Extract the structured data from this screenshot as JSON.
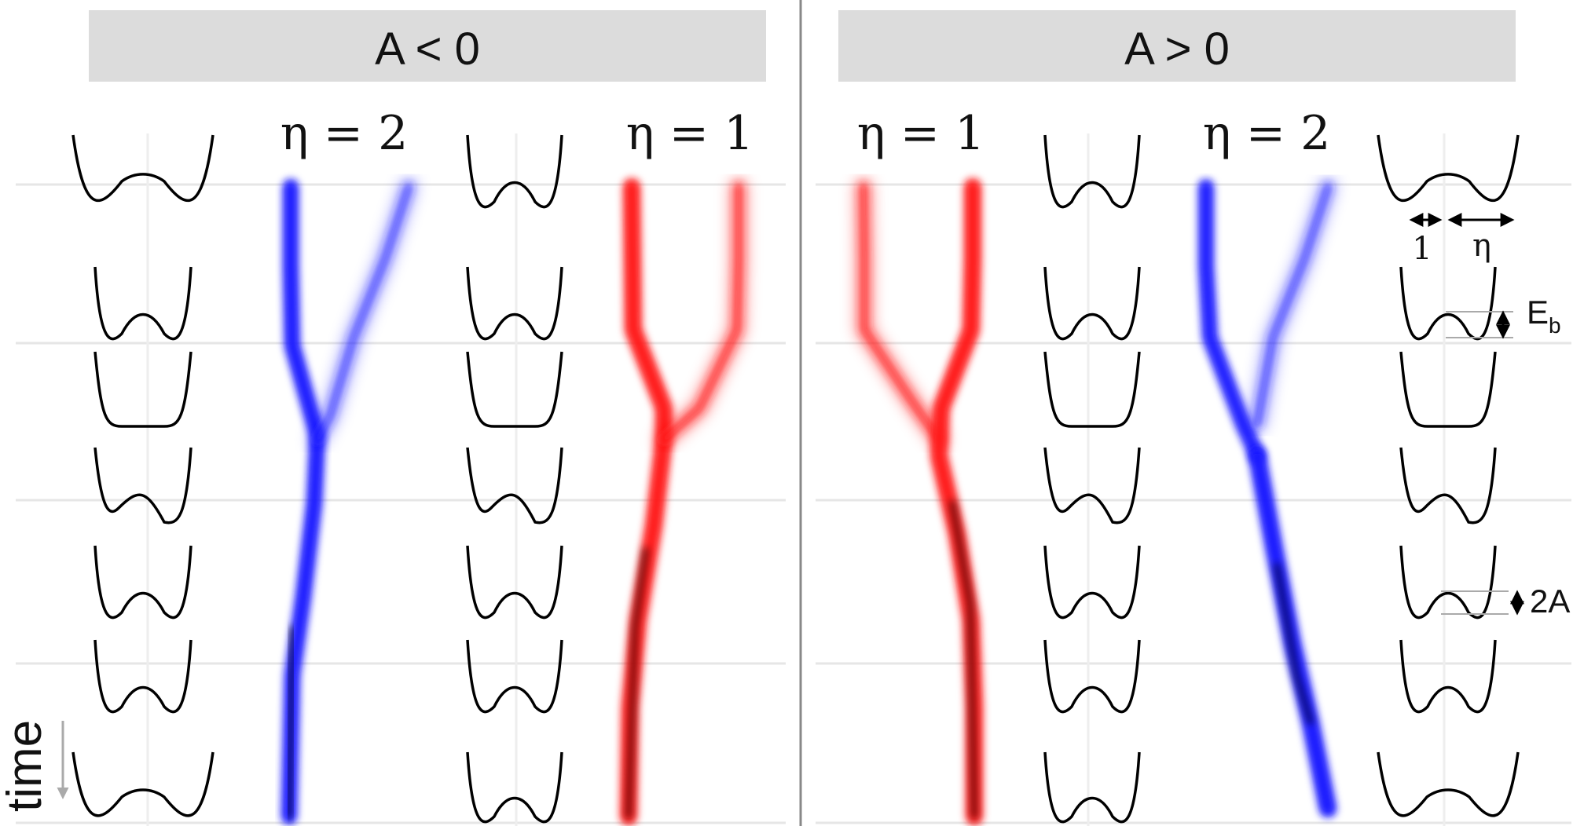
{
  "panels": [
    {
      "header": "A < 0",
      "columns": [
        {
          "label": "η = 2",
          "color": "#1a1aff",
          "eta": 2
        },
        {
          "label": "η = 1",
          "color": "#ff1a1a",
          "eta": 1
        }
      ]
    },
    {
      "header": "A > 0",
      "columns": [
        {
          "label": "η = 1",
          "color": "#ff1a1a",
          "eta": 1
        },
        {
          "label": "η = 2",
          "color": "#1a1aff",
          "eta": 2
        }
      ]
    }
  ],
  "annotations": {
    "one": "1",
    "eta": "η",
    "barrier": "E",
    "barrier_sub": "b",
    "asym": "2A"
  },
  "axis": {
    "time_label": "time"
  },
  "colors": {
    "header_bg": "#dcdcdc",
    "divider": "#888888",
    "gridline": "#e6e6e6",
    "blue": "#1a1aff",
    "red": "#ff1a1a",
    "potential": "#000000"
  }
}
